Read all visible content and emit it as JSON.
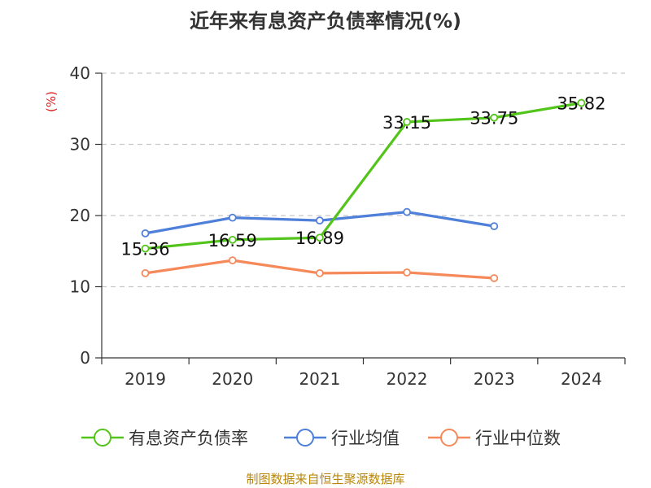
{
  "title": "近年来有息资产负债率情况(%)",
  "source": "制图数据来自恒生聚源数据库",
  "chart_data": {
    "type": "line",
    "title": "近年来有息资产负债率情况(%)",
    "ylabel": "(%)",
    "xlabel": "",
    "categories": [
      "2019",
      "2020",
      "2021",
      "2022",
      "2023",
      "2024"
    ],
    "ylim": [
      0,
      40
    ],
    "yticks": [
      0,
      10,
      20,
      30,
      40
    ],
    "grid": true,
    "legend_position": "bottom",
    "series": [
      {
        "name": "有息资产负债率",
        "color": "#52c41a",
        "values": [
          15.36,
          16.59,
          16.89,
          33.15,
          33.75,
          35.82
        ],
        "labels": [
          "15.36",
          "16.59",
          "16.89",
          "33.15",
          "33.75",
          "35.82"
        ]
      },
      {
        "name": "行业均值",
        "color": "#4e7fd9",
        "values": [
          17.5,
          19.7,
          19.3,
          20.5,
          18.5,
          null
        ]
      },
      {
        "name": "行业中位数",
        "color": "#f5895a",
        "values": [
          11.9,
          13.7,
          11.9,
          12.0,
          11.2,
          null
        ]
      }
    ]
  }
}
